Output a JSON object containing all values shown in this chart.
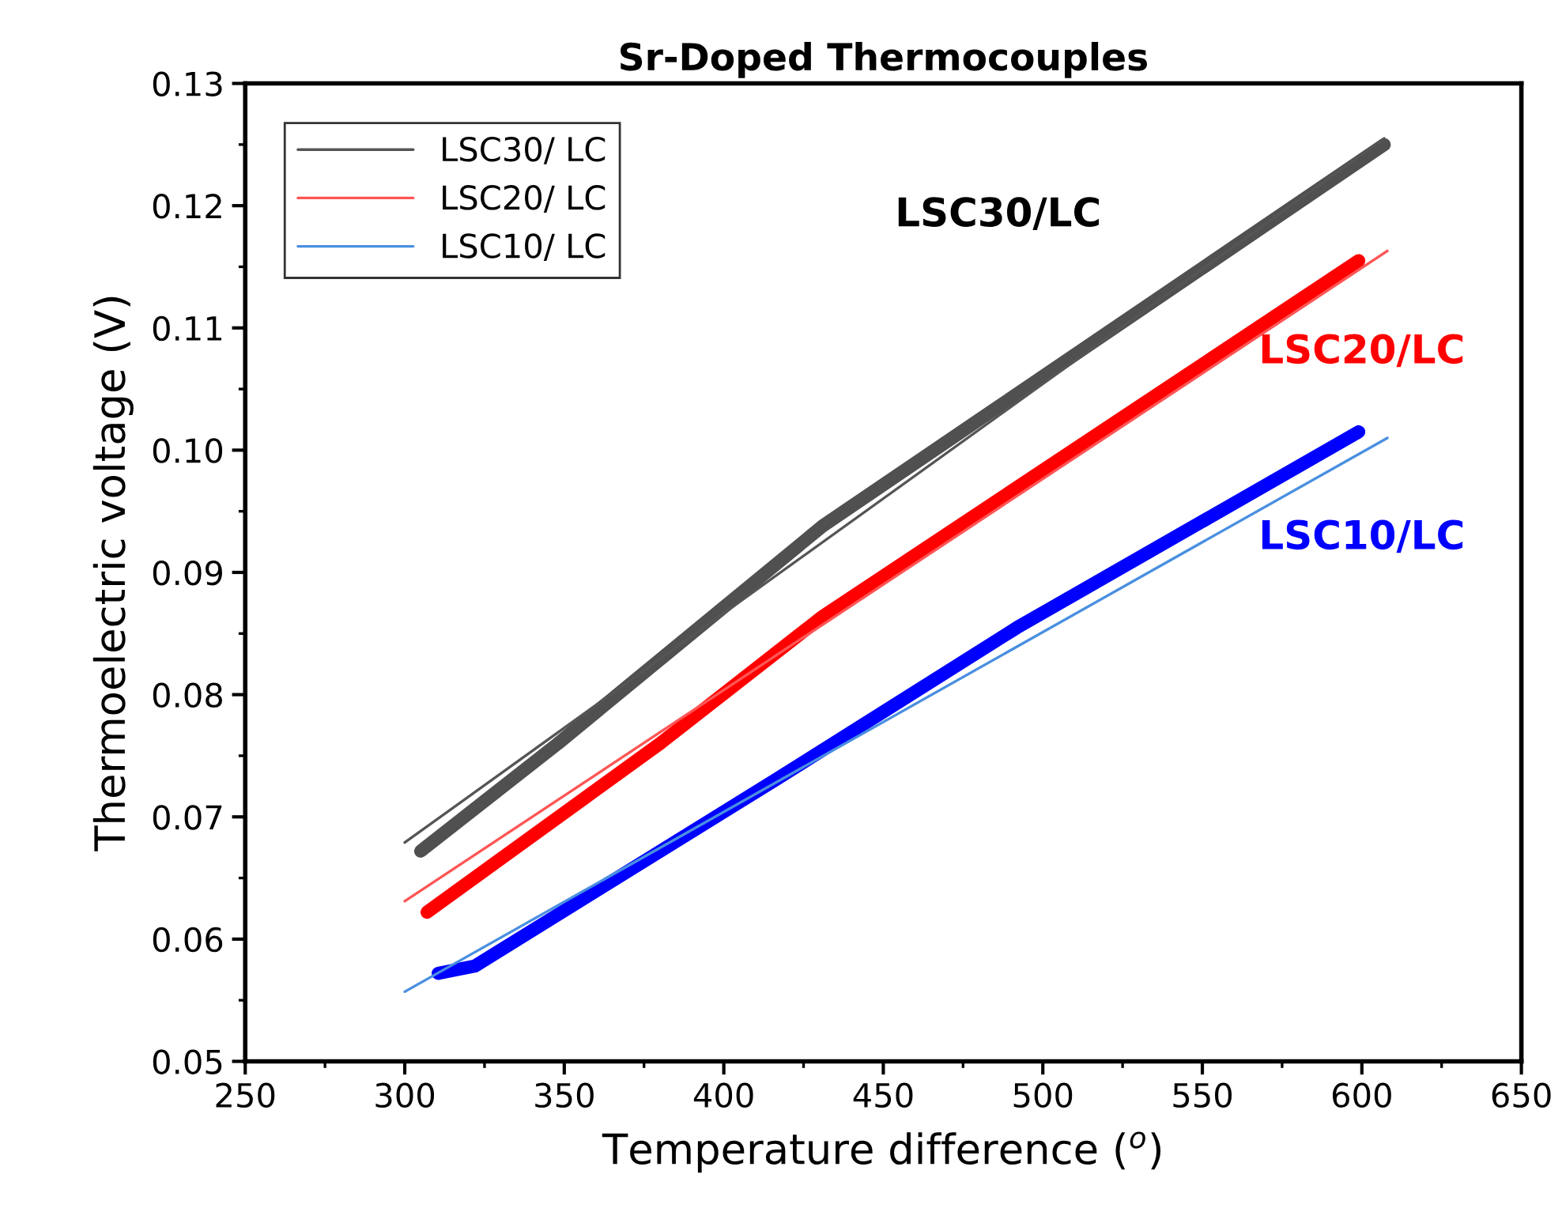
{
  "chart_data": {
    "type": "line",
    "title": "Sr-Doped Thermocouples",
    "xlabel": "Temperature difference ($^{o}$)",
    "ylabel": "Thermoelectric voltage (V)",
    "xlim": [
      250,
      650
    ],
    "xticks": [
      250,
      300,
      350,
      400,
      450,
      500,
      550,
      600,
      650
    ],
    "ylim": [
      0.05,
      0.13
    ],
    "yticks": [
      0.05,
      0.06,
      0.07,
      0.08,
      0.09,
      {
        "value": 0.1,
        "label": "0.10"
      },
      0.11,
      0.12,
      0.13
    ],
    "grid": false,
    "legend": "top left",
    "marker": "none",
    "line_style": "solid",
    "series": [
      {
        "name": "LSC30/ LC",
        "color": "#555555",
        "x": [
          300,
          607
        ],
        "values": [
          0.0679,
          0.1255
        ]
      },
      {
        "name": "LSC20/ LC",
        "color": "#ff5555",
        "x": [
          300,
          608
        ],
        "values": [
          0.0631,
          0.1163
        ]
      },
      {
        "name": "LSC10/ LC",
        "color": "#4a8fe0",
        "x": [
          300,
          608
        ],
        "values": [
          0.0557,
          0.101
        ]
      },
      {
        "color": "#505050",
        "x": [
          305,
          348,
          431,
          607
        ],
        "values": [
          0.0672,
          0.076,
          0.0938,
          0.125
        ]
      },
      {
        "color": "#ff0000",
        "x": [
          307,
          380,
          431,
          599
        ],
        "values": [
          0.0622,
          0.076,
          0.0864,
          0.1155
        ]
      },
      {
        "color": "#0000ff",
        "x": [
          310.5,
          322,
          416,
          492,
          599
        ],
        "values": [
          0.0572,
          0.0578,
          0.073,
          0.0855,
          0.1015
        ]
      }
    ],
    "annotations": [
      "LSC30/LC",
      "LSC20/LC",
      "LSC10/LC"
    ]
  }
}
